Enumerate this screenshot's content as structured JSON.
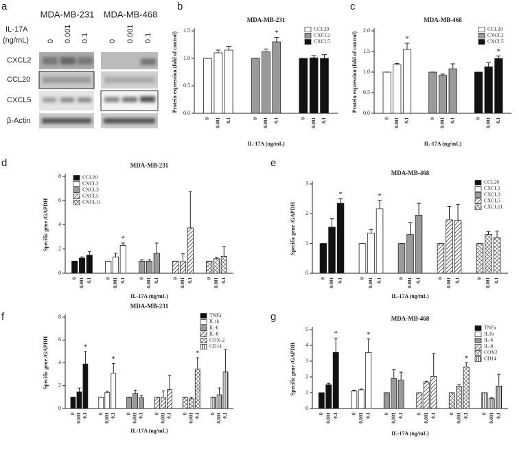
{
  "blot": {
    "panel": "a",
    "cell_lines": [
      "MDA-MB-231",
      "MDA-MB-468"
    ],
    "treatment_label": [
      "IL-17A",
      "(ng/mL)"
    ],
    "doses": [
      "0",
      "0.001",
      "0.1"
    ],
    "rows": [
      "CXCL2",
      "CCL20",
      "CXCL5",
      "β-Actin"
    ]
  },
  "chart_data": [
    {
      "type": "bar",
      "panel": "b",
      "title": "MDA-MB-231",
      "ylabel": "Protein expression (fold of control)",
      "xlabel": "IL-17A (ng/mL)",
      "legend": "upper right",
      "categories": [
        "0",
        "0.001",
        "0.1"
      ],
      "ylim": [
        0,
        1.5
      ],
      "yticks": [
        {
          "value": 0,
          "label": "0.0"
        },
        {
          "value": 0.5,
          "label": "0.5"
        },
        {
          "value": 1,
          "label": "1.0"
        },
        {
          "value": 1.5,
          "label": "1.5"
        }
      ],
      "series": [
        {
          "name": "CCL20",
          "color": "#ffffff",
          "values": [
            1,
            1.1,
            1.15
          ],
          "errors": [
            0,
            0.05,
            0.07
          ],
          "stars": [
            null,
            null,
            null
          ]
        },
        {
          "name": "CXCL2",
          "color": "#9a9a9a",
          "values": [
            1,
            1.12,
            1.3
          ],
          "errors": [
            0,
            0.05,
            0.08
          ],
          "stars": [
            null,
            null,
            "*"
          ]
        },
        {
          "name": "CXCL5",
          "color": "#111111",
          "values": [
            1,
            1.01,
            1.0
          ],
          "errors": [
            0,
            0.04,
            0.07
          ],
          "stars": [
            null,
            null,
            null
          ]
        }
      ]
    },
    {
      "type": "bar",
      "panel": "c",
      "title": "MDA-MB-468",
      "ylabel": "Protein expression (fold of control)",
      "xlabel": "IL-17A (ng/mL)",
      "legend": "upper right",
      "categories": [
        "0",
        "0.001",
        "0.1"
      ],
      "ylim": [
        0,
        2
      ],
      "yticks": [
        {
          "value": 0,
          "label": "0.0"
        },
        {
          "value": 0.5,
          "label": "0.5"
        },
        {
          "value": 1,
          "label": "1.0"
        },
        {
          "value": 1.5,
          "label": "1.5"
        },
        {
          "value": 2,
          "label": "2.0"
        }
      ],
      "series": [
        {
          "name": "CCL20",
          "color": "#ffffff",
          "values": [
            1,
            1.18,
            1.55
          ],
          "errors": [
            0,
            0.03,
            0.15
          ],
          "stars": [
            null,
            null,
            "*"
          ]
        },
        {
          "name": "CXCL2",
          "color": "#9a9a9a",
          "values": [
            1,
            0.92,
            1.08
          ],
          "errors": [
            0,
            0.03,
            0.12
          ],
          "stars": [
            null,
            null,
            null
          ]
        },
        {
          "name": "CXCL5",
          "color": "#111111",
          "values": [
            1,
            1.13,
            1.33
          ],
          "errors": [
            0,
            0.1,
            0.06
          ],
          "stars": [
            null,
            null,
            "*"
          ]
        }
      ]
    },
    {
      "type": "bar",
      "panel": "d",
      "title": "MDA-MB-231",
      "ylabel": "Specific gene /GAPDH",
      "xlabel": "IL-17A (ng/mL)",
      "legend": "upper left",
      "categories": [
        "0",
        "0.001",
        "0.1"
      ],
      "ylim": [
        0,
        8
      ],
      "yticks": [
        0,
        2,
        4,
        6,
        8
      ],
      "series": [
        {
          "name": "CCL20",
          "color": "#111111",
          "values": [
            1,
            1.25,
            1.5
          ],
          "errors": [
            0,
            0.1,
            0.3
          ],
          "stars": [
            null,
            null,
            null
          ]
        },
        {
          "name": "CXCL2",
          "color": "#ffffff",
          "values": [
            1,
            1.35,
            2.3
          ],
          "errors": [
            0,
            0.3,
            0.2
          ],
          "stars": [
            null,
            null,
            "*"
          ]
        },
        {
          "name": "CXCL3",
          "color": "#9a9a9a",
          "values": [
            1,
            1.0,
            1.65
          ],
          "errors": [
            0.1,
            0.1,
            0.85
          ],
          "stars": [
            null,
            null,
            null
          ]
        },
        {
          "name": "CXCL5",
          "color": "#ffffff",
          "pattern": "hatch",
          "values": [
            1,
            0.95,
            3.75
          ],
          "errors": [
            0,
            0.65,
            3.0
          ],
          "stars": [
            null,
            null,
            null
          ]
        },
        {
          "name": "CXCL11",
          "color": "#ffffff",
          "pattern": "cross",
          "values": [
            1,
            1.2,
            1.4
          ],
          "errors": [
            0,
            0.1,
            0.8
          ],
          "stars": [
            null,
            null,
            null
          ]
        }
      ]
    },
    {
      "type": "bar",
      "panel": "e",
      "title": "MDA-MB-468",
      "ylabel": "Specific gene /GAPDH",
      "xlabel": "IL-17A (ng/mL)",
      "legend": "upper right",
      "categories": [
        "0",
        "0.001",
        "0.1"
      ],
      "ylim": [
        0,
        3
      ],
      "yticks": [
        0,
        1,
        2,
        3
      ],
      "series": [
        {
          "name": "CCL20",
          "color": "#111111",
          "values": [
            1,
            1.55,
            2.35
          ],
          "errors": [
            0,
            0.28,
            0.15
          ],
          "stars": [
            null,
            null,
            "*"
          ]
        },
        {
          "name": "CXCL2",
          "color": "#ffffff",
          "values": [
            1,
            1.35,
            2.17
          ],
          "errors": [
            0,
            0.12,
            0.28
          ],
          "stars": [
            null,
            null,
            "*"
          ]
        },
        {
          "name": "CXCL3",
          "color": "#9a9a9a",
          "values": [
            1,
            1.3,
            1.95
          ],
          "errors": [
            0,
            0.4,
            0.4
          ],
          "stars": [
            null,
            null,
            null
          ]
        },
        {
          "name": "CXCL5",
          "color": "#ffffff",
          "pattern": "hatch",
          "values": [
            1,
            1.8,
            1.77
          ],
          "errors": [
            0,
            0.45,
            0.55
          ],
          "stars": [
            null,
            null,
            null
          ]
        },
        {
          "name": "CXCL11",
          "color": "#ffffff",
          "pattern": "cross",
          "values": [
            1,
            1.3,
            1.2
          ],
          "errors": [
            0,
            0.1,
            0.22
          ],
          "stars": [
            null,
            null,
            null
          ]
        }
      ]
    },
    {
      "type": "bar",
      "panel": "f",
      "title": "MDA-MB-231",
      "ylabel": "Specific gene /GAPDH",
      "xlabel": "IL-17A (ng/mL)",
      "legend": "upper right",
      "categories": [
        "0",
        "0.001",
        "0.1"
      ],
      "ylim": [
        0,
        8
      ],
      "yticks": [
        0,
        2,
        4,
        6,
        8
      ],
      "series": [
        {
          "name": "TNFa",
          "color": "#111111",
          "values": [
            1,
            1.45,
            3.9
          ],
          "errors": [
            0,
            0.35,
            1.1
          ],
          "stars": [
            null,
            null,
            "*"
          ]
        },
        {
          "name": "IL1b",
          "color": "#ffffff",
          "values": [
            1,
            1.4,
            3.1
          ],
          "errors": [
            0,
            0.1,
            0.85
          ],
          "stars": [
            null,
            null,
            "*"
          ]
        },
        {
          "name": "IL-6",
          "color": "#9a9a9a",
          "values": [
            1,
            1.3,
            0.95
          ],
          "errors": [
            0,
            0.3,
            0.2
          ],
          "stars": [
            null,
            null,
            null
          ]
        },
        {
          "name": "IL-8",
          "color": "#ffffff",
          "pattern": "hatch",
          "values": [
            1,
            0.95,
            1.65
          ],
          "errors": [
            0,
            0.6,
            1.25
          ],
          "stars": [
            null,
            null,
            null
          ]
        },
        {
          "name": "COX-2",
          "color": "#ffffff",
          "pattern": "cross",
          "values": [
            1,
            0.85,
            3.45
          ],
          "errors": [
            0,
            0.15,
            1.0
          ],
          "stars": [
            null,
            null,
            "*"
          ]
        },
        {
          "name": "CD14",
          "color": "#ffffff",
          "pattern": "vert",
          "values": [
            1,
            1.2,
            3.2
          ],
          "errors": [
            0,
            0.6,
            1.95
          ],
          "stars": [
            null,
            null,
            null
          ]
        }
      ]
    },
    {
      "type": "bar",
      "panel": "g",
      "title": "MDA-MB-468",
      "ylabel": "Specific gene /GAPDH",
      "xlabel": "IL-17A (ng/mL)",
      "legend": "upper right",
      "categories": [
        "0",
        "0.001",
        "0.1"
      ],
      "ylim": [
        0,
        5
      ],
      "yticks": [
        0,
        1,
        2,
        3,
        4,
        5
      ],
      "series": [
        {
          "name": "TNFa",
          "color": "#111111",
          "values": [
            1,
            1.5,
            3.55
          ],
          "errors": [
            0,
            0.1,
            0.9
          ],
          "stars": [
            null,
            null,
            "*"
          ]
        },
        {
          "name": "IL1b",
          "color": "#ffffff",
          "values": [
            1.1,
            1.18,
            3.55
          ],
          "errors": [
            0.05,
            0.05,
            0.85
          ],
          "stars": [
            null,
            null,
            "*"
          ]
        },
        {
          "name": "IL-6",
          "color": "#9a9a9a",
          "values": [
            1,
            1.9,
            1.8
          ],
          "errors": [
            0,
            0.55,
            0.5
          ],
          "stars": [
            null,
            null,
            null
          ]
        },
        {
          "name": "IL-8",
          "color": "#ffffff",
          "pattern": "hatch",
          "values": [
            1,
            1.68,
            2.03
          ],
          "errors": [
            0,
            0.05,
            1.45
          ],
          "stars": [
            null,
            null,
            null
          ]
        },
        {
          "name": "COX2",
          "color": "#ffffff",
          "pattern": "cross",
          "values": [
            1,
            1.4,
            2.62
          ],
          "errors": [
            0,
            0.12,
            0.28
          ],
          "stars": [
            null,
            null,
            "*"
          ]
        },
        {
          "name": "CD14",
          "color": "#ffffff",
          "pattern": "vert",
          "values": [
            1,
            0.62,
            1.42
          ],
          "errors": [
            0,
            0.1,
            0.75
          ],
          "stars": [
            null,
            null,
            null
          ]
        }
      ]
    }
  ]
}
